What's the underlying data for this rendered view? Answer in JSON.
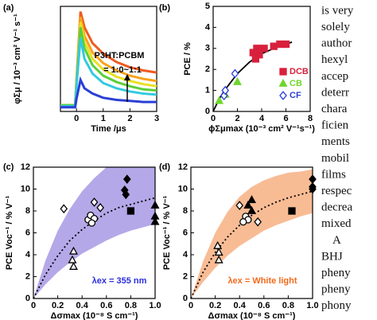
{
  "chart_data": [
    {
      "type": "line",
      "panel_label": "(a)",
      "x_label": "Time /μs",
      "y_label": "φΣμ / 10⁻³ cm² V⁻¹ s⁻¹",
      "annotations": [
        "P3HT:PCBM",
        "= 1:0~1:1"
      ],
      "x": [
        -0.6,
        -0.05,
        0,
        0.15,
        0.3,
        0.6,
        1,
        1.5,
        2,
        2.5,
        3
      ],
      "xlim": [
        -0.6,
        3
      ],
      "xticks": [
        0,
        1,
        2,
        3
      ],
      "ylim": [
        0,
        1
      ],
      "yticks": [],
      "series": [
        {
          "color": "#f05a1e",
          "values": [
            0.06,
            0.06,
            0.3,
            0.95,
            0.8,
            0.65,
            0.55,
            0.47,
            0.42,
            0.39,
            0.37
          ]
        },
        {
          "color": "#f7a21b",
          "values": [
            0.06,
            0.06,
            0.3,
            0.9,
            0.72,
            0.56,
            0.46,
            0.39,
            0.34,
            0.31,
            0.29
          ]
        },
        {
          "color": "#e8e020",
          "values": [
            0.06,
            0.06,
            0.28,
            0.85,
            0.66,
            0.5,
            0.4,
            0.33,
            0.29,
            0.26,
            0.24
          ]
        },
        {
          "color": "#5ccf3a",
          "values": [
            0.06,
            0.06,
            0.26,
            0.8,
            0.6,
            0.44,
            0.34,
            0.28,
            0.24,
            0.21,
            0.2
          ]
        },
        {
          "color": "#33c9e0",
          "values": [
            0.05,
            0.05,
            0.24,
            0.7,
            0.5,
            0.36,
            0.27,
            0.22,
            0.19,
            0.17,
            0.16
          ]
        },
        {
          "color": "#2a3fd6",
          "values": [
            0.04,
            0.04,
            0.12,
            0.3,
            0.22,
            0.17,
            0.13,
            0.11,
            0.1,
            0.09,
            0.09
          ]
        }
      ]
    },
    {
      "type": "scatter",
      "panel_label": "(b)",
      "x_label": "ϕΣμmax (10⁻³ cm² V⁻¹s⁻¹)",
      "y_label": "PCE / %",
      "xlim": [
        0,
        8
      ],
      "xticks": [
        0,
        2,
        4,
        6,
        8
      ],
      "ylim": [
        0,
        5
      ],
      "yticks": [
        0,
        1,
        2,
        3,
        4,
        5
      ],
      "legend": "lower-right",
      "series": [
        {
          "name": "DCB",
          "color": "#d8203c",
          "marker": "square",
          "filled": true,
          "x": [
            3.3,
            3.5,
            3.6,
            3.8,
            4.2,
            5.0,
            5.5,
            6.0
          ],
          "values": [
            2.8,
            2.5,
            3.0,
            2.7,
            3.0,
            3.1,
            3.2,
            3.2
          ]
        },
        {
          "name": "CB",
          "color": "#6fd62c",
          "marker": "triangle",
          "filled": true,
          "x": [
            0.5,
            1.0,
            2.0
          ],
          "values": [
            0.5,
            0.8,
            1.4
          ]
        },
        {
          "name": "CF",
          "color": "#2b3fd6",
          "marker": "diamond",
          "filled": false,
          "x": [
            0.9,
            1.0,
            1.8
          ],
          "values": [
            0.75,
            1.0,
            1.8
          ]
        }
      ],
      "fit": {
        "x": [
          0,
          0.5,
          1,
          2,
          3,
          4,
          5,
          6,
          6.5
        ],
        "y": [
          0,
          0.6,
          1.05,
          1.8,
          2.35,
          2.75,
          3.0,
          3.2,
          3.3
        ]
      }
    },
    {
      "type": "scatter",
      "panel_label": "(c)",
      "x_label": "Δσmax (10⁻⁸ S cm⁻¹)",
      "y_label": "PCE Voc⁻¹ / % V⁻¹",
      "annotations": [
        "λex = 355 nm"
      ],
      "annotation_color": "#2b2fe0",
      "xlim": [
        0,
        1
      ],
      "xticks": [
        0,
        0.2,
        0.4,
        0.6,
        0.8,
        {
          "value": 1,
          "label": "1.0"
        }
      ],
      "ylim": [
        0,
        12
      ],
      "yticks": [
        0,
        2,
        4,
        6,
        8,
        10,
        12
      ],
      "band": {
        "color": "#b5a8e8",
        "x": [
          0,
          0.1,
          0.2,
          0.3,
          0.4,
          0.5,
          0.6,
          0.7,
          0.8,
          0.9,
          1
        ],
        "lower": [
          0,
          1.3,
          2.4,
          3.3,
          4.1,
          4.7,
          5.3,
          5.8,
          6.2,
          6.5,
          6.8
        ],
        "upper": [
          0,
          3.5,
          6.2,
          8.2,
          9.8,
          11.0,
          12,
          12,
          12,
          12,
          12
        ]
      },
      "fit": {
        "x": [
          0,
          0.1,
          0.2,
          0.3,
          0.4,
          0.5,
          0.6,
          0.7,
          0.8,
          0.9,
          1
        ],
        "y": [
          0,
          2.2,
          3.9,
          5.3,
          6.3,
          7.1,
          7.8,
          8.3,
          8.6,
          8.9,
          9.2
        ]
      },
      "series": [
        {
          "color": "#000000",
          "marker": "diamond",
          "filled": false,
          "x": [
            0.25,
            0.5,
            0.55
          ],
          "values": [
            8.2,
            8.8,
            8.3
          ]
        },
        {
          "color": "#000000",
          "marker": "triangle",
          "filled": false,
          "x": [
            0.32,
            0.33,
            0.33
          ],
          "values": [
            3.5,
            4.3,
            2.9
          ]
        },
        {
          "color": "#000000",
          "marker": "circle",
          "filled": false,
          "x": [
            0.45,
            0.47,
            0.5,
            0.48
          ],
          "values": [
            7.2,
            7.6,
            7.3,
            6.9
          ]
        },
        {
          "color": "#000000",
          "marker": "square",
          "filled": true,
          "x": [
            0.8
          ],
          "values": [
            8.0
          ]
        },
        {
          "color": "#000000",
          "marker": "diamond",
          "filled": true,
          "x": [
            0.75,
            0.77,
            0.76
          ],
          "values": [
            9.9,
            10.9,
            9.5
          ]
        },
        {
          "color": "#000000",
          "marker": "triangle",
          "filled": true,
          "x": [
            1,
            1,
            1
          ],
          "values": [
            8.5,
            7.5,
            7.0
          ]
        }
      ]
    },
    {
      "type": "scatter",
      "panel_label": "(d)",
      "x_label": "Δσmax (10⁻⁸ S cm⁻¹)",
      "y_label": "PCE Voc⁻¹ / % V⁻¹",
      "annotations": [
        "λex = White light"
      ],
      "annotation_color": "#f26a1b",
      "xlim": [
        0,
        1
      ],
      "xticks": [
        0,
        0.2,
        0.4,
        0.6,
        0.8,
        {
          "value": 1,
          "label": "1.0"
        }
      ],
      "ylim": [
        0,
        12
      ],
      "yticks": [
        0,
        2,
        4,
        6,
        8,
        10,
        12
      ],
      "band": {
        "color": "#f8bc95",
        "x": [
          0,
          0.1,
          0.2,
          0.3,
          0.4,
          0.5,
          0.6,
          0.7,
          0.8,
          0.9,
          1
        ],
        "lower": [
          0,
          1.5,
          2.8,
          3.9,
          4.8,
          5.5,
          6.2,
          6.7,
          7.1,
          7.5,
          7.8
        ],
        "upper": [
          0,
          3.4,
          6.0,
          7.9,
          9.3,
          10.2,
          10.8,
          11.2,
          11.5,
          11.6,
          11.8
        ]
      },
      "fit": {
        "x": [
          0,
          0.1,
          0.2,
          0.3,
          0.4,
          0.5,
          0.6,
          0.7,
          0.8,
          0.9,
          1
        ],
        "y": [
          0,
          2.4,
          4.2,
          5.6,
          6.7,
          7.6,
          8.3,
          8.8,
          9.2,
          9.5,
          9.8
        ]
      },
      "series": [
        {
          "color": "#000000",
          "marker": "triangle",
          "filled": false,
          "x": [
            0.23,
            0.23,
            0.22
          ],
          "values": [
            3.5,
            4.2,
            4.8
          ]
        },
        {
          "color": "#000000",
          "marker": "circle",
          "filled": false,
          "x": [
            0.45,
            0.47,
            0.43
          ],
          "values": [
            7.5,
            7.2,
            7.0
          ]
        },
        {
          "color": "#000000",
          "marker": "diamond",
          "filled": false,
          "x": [
            0.4,
            0.55
          ],
          "values": [
            8.5,
            7.0
          ]
        },
        {
          "color": "#000000",
          "marker": "square",
          "filled": true,
          "x": [
            0.83
          ],
          "values": [
            8.0
          ]
        },
        {
          "color": "#000000",
          "marker": "triangle",
          "filled": true,
          "x": [
            0.47,
            0.5,
            0.5
          ],
          "values": [
            8.5,
            9.0,
            8.0
          ]
        },
        {
          "color": "#000000",
          "marker": "diamond",
          "filled": true,
          "x": [
            1,
            1,
            1
          ],
          "values": [
            10.0,
            10.9,
            10.2
          ]
        }
      ]
    }
  ],
  "body_text": [
    "is very",
    "solely",
    "author",
    "hexyl",
    "accep",
    "deterr",
    "chara",
    "ficien",
    "ments",
    "mobil",
    "films",
    "respec",
    "decrea",
    "mixed",
    "A",
    "BHJ",
    "pheny",
    "pheny",
    "phony"
  ]
}
